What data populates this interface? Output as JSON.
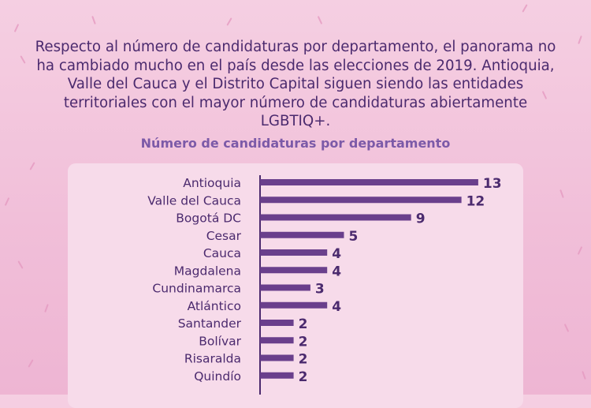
{
  "intro_text": "Respecto al número de candidaturas por departamento, el panorama no ha cambiado mucho en el país desde las elecciones de 2019. Antioquia, Valle del Cauca y el Distrito Capital siguen siendo las entidades territoriales con el mayor número de candidaturas abiertamente LGBTIQ+.",
  "colors": {
    "background": "#f3c6dd",
    "card": "#f7dbea",
    "bar": "#6a3f8c",
    "text_dark": "#4b2a6e",
    "subtitle": "#7c5aa8"
  },
  "chart_data": {
    "type": "bar",
    "orientation": "horizontal",
    "title": "Número de candidaturas por departamento",
    "categories": [
      "Antioquia",
      "Valle del Cauca",
      "Bogotá DC",
      "Cesar",
      "Cauca",
      "Magdalena",
      "Cundinamarca",
      "Atlántico",
      "Santander",
      "Bolívar",
      "Risaralda",
      "Quindío"
    ],
    "values": [
      13,
      12,
      9,
      5,
      4,
      4,
      3,
      4,
      2,
      2,
      2,
      2
    ],
    "xlim": [
      0,
      13
    ],
    "grid": false,
    "legend": "none"
  }
}
